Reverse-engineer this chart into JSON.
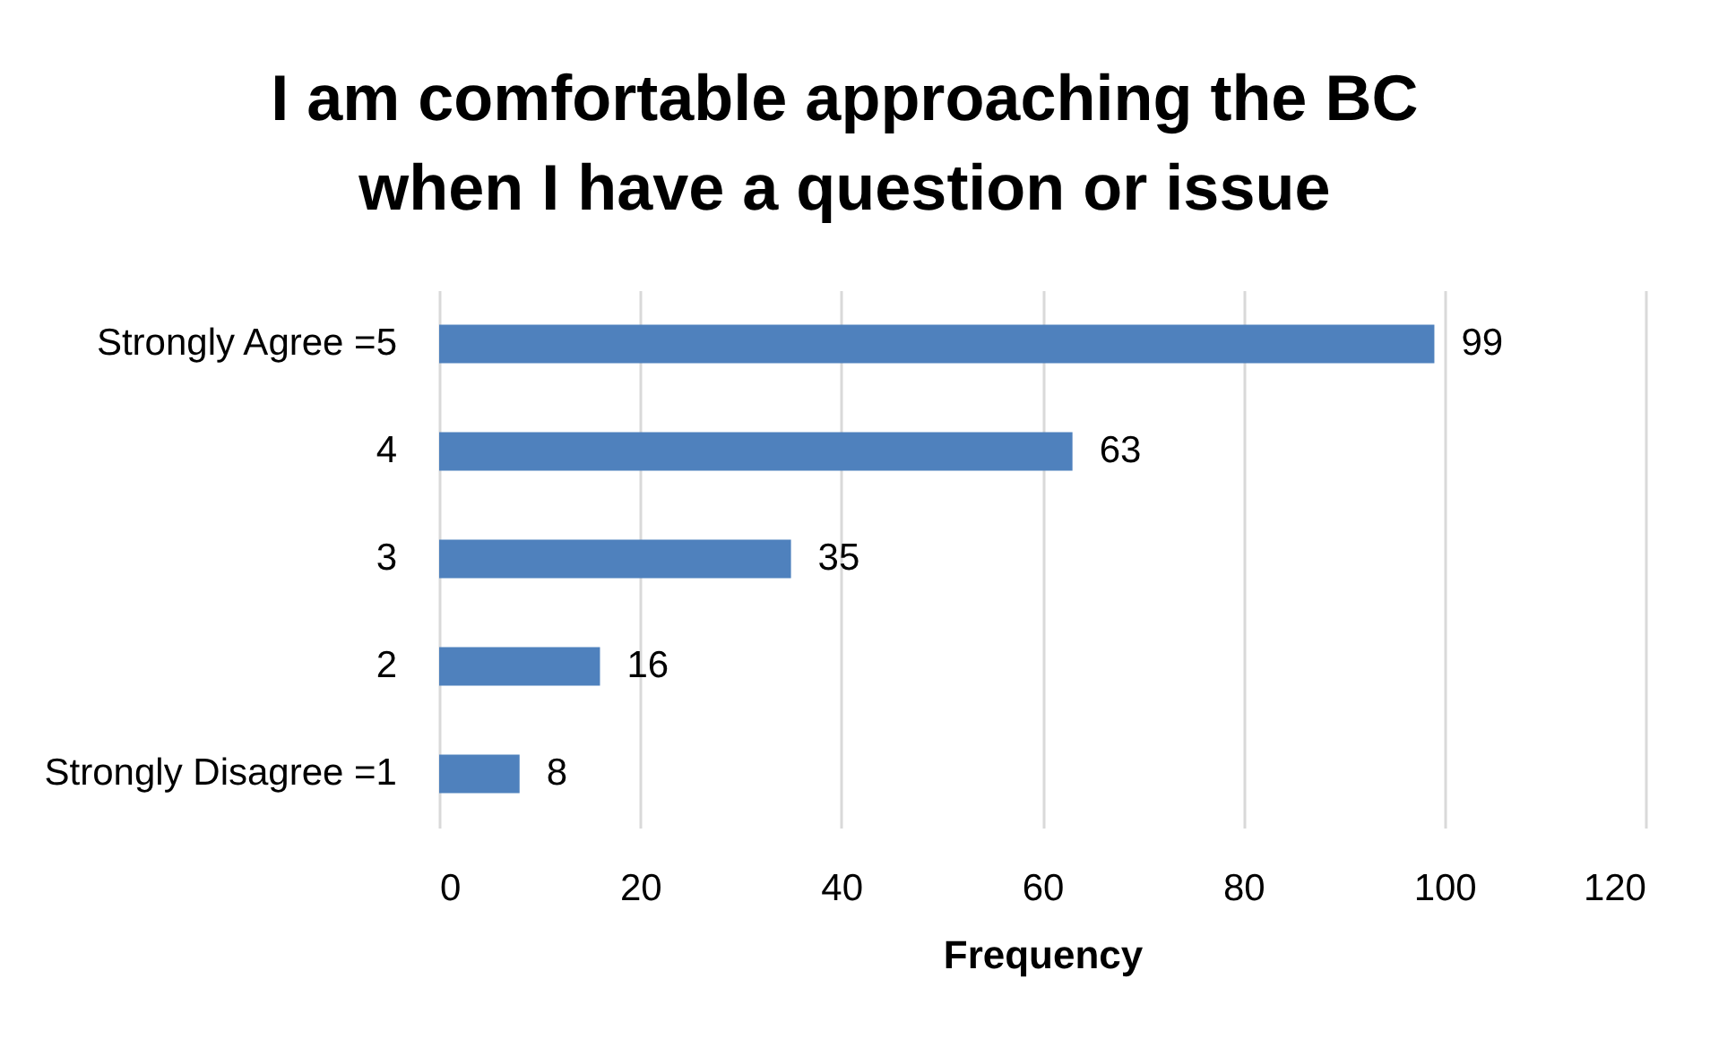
{
  "chart_data": {
    "type": "bar",
    "orientation": "horizontal",
    "title": "I am comfortable approaching the BC\nwhen I have a question or issue",
    "categories": [
      "Strongly Agree =5",
      "4",
      "3",
      "2",
      "Strongly Disagree =1"
    ],
    "values": [
      99,
      63,
      35,
      16,
      8
    ],
    "color": "#4f81bd",
    "xlabel": "Frequency",
    "xlim": [
      0,
      120
    ],
    "xticks": [
      0,
      20,
      40,
      60,
      80,
      100,
      120
    ],
    "grid": "x",
    "data_labels": true
  }
}
